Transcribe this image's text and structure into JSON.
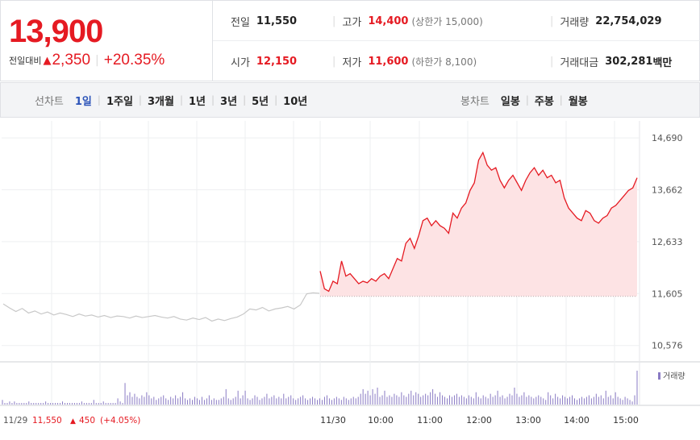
{
  "quote": {
    "current_price": "13,900",
    "change_label": "전일대비",
    "change_icon": "up-triangle-icon",
    "change_amount": "2,350",
    "change_percent": "+20.35%"
  },
  "stats": {
    "prev_close": {
      "label": "전일",
      "value": "11,550"
    },
    "open": {
      "label": "시가",
      "value": "12,150"
    },
    "high": {
      "label": "고가",
      "value": "14,400",
      "sub": "(상한가 15,000)"
    },
    "low": {
      "label": "저가",
      "value": "11,600",
      "sub": "(하한가 8,100)"
    },
    "volume": {
      "label": "거래량",
      "value": "22,754,029"
    },
    "amount": {
      "label": "거래대금",
      "value": "302,281",
      "unit": "백만"
    }
  },
  "tabs": {
    "line_label": "선차트",
    "line_tabs": [
      "1일",
      "1주일",
      "3개월",
      "1년",
      "3년",
      "5년",
      "10년"
    ],
    "line_active": "1일",
    "candle_label": "봉차트",
    "candle_tabs": [
      "일봉",
      "주봉",
      "월봉"
    ]
  },
  "colors": {
    "up": "#e51a22",
    "prev_day_line": "#c8c8c8",
    "fill": "#fde3e4",
    "volume": "#8a7bc4",
    "active_tab": "#2b53b8"
  },
  "chart_data": {
    "type": "line",
    "y_ticks": [
      "14,690",
      "13,662",
      "12,633",
      "11,605",
      "10,576"
    ],
    "y_tick_values": [
      14690,
      13662,
      12633,
      11605,
      10576
    ],
    "ylim": [
      10300,
      14900
    ],
    "baseline": 11550,
    "x_labels": [
      "11/29",
      "11/30",
      "10:00",
      "11:00",
      "12:00",
      "13:00",
      "14:00",
      "15:00"
    ],
    "prev_day_footer": {
      "date": "11/29",
      "price": "11,550",
      "change": "450",
      "pct": "(+4.05%)"
    },
    "volume_legend": "거래량",
    "series": [
      {
        "values_prev_day": [
          11400,
          11320,
          11250,
          11310,
          11220,
          11260,
          11200,
          11240,
          11180,
          11220,
          11190,
          11150,
          11200,
          11160,
          11180,
          11140,
          11170,
          11130,
          11160,
          11150,
          11120,
          11160,
          11130,
          11150,
          11170,
          11140,
          11120,
          11150,
          11100,
          11080,
          11120,
          11090,
          11130,
          11060,
          11100,
          11070,
          11110,
          11140,
          11200,
          11300,
          11280,
          11330,
          11260,
          11300,
          11320,
          11350,
          11300,
          11380,
          11600,
          11620,
          11610
        ],
        "values_today": [
          12050,
          11700,
          11650,
          11850,
          11800,
          12250,
          11950,
          12000,
          11900,
          11800,
          11850,
          11820,
          11900,
          11850,
          11950,
          12000,
          11900,
          12100,
          12300,
          12250,
          12600,
          12700,
          12500,
          12750,
          13050,
          13100,
          12950,
          13050,
          12950,
          12900,
          12800,
          13200,
          13100,
          13300,
          13400,
          13650,
          13800,
          14250,
          14400,
          14150,
          14050,
          14100,
          13850,
          13700,
          13850,
          13950,
          13800,
          13650,
          13850,
          14000,
          14100,
          13950,
          14050,
          13900,
          13950,
          13800,
          13850,
          13500,
          13300,
          13200,
          13100,
          13050,
          13250,
          13200,
          13050,
          13000,
          13100,
          13150,
          13300,
          13350,
          13450,
          13550,
          13650,
          13700,
          13900
        ]
      }
    ],
    "volume_values": [
      3,
      1,
      1,
      2,
      1,
      2,
      1,
      1,
      1,
      1,
      1,
      2,
      1,
      1,
      1,
      1,
      1,
      1,
      2,
      1,
      1,
      1,
      1,
      1,
      1,
      2,
      1,
      1,
      1,
      1,
      1,
      1,
      1,
      2,
      1,
      1,
      1,
      1,
      3,
      1,
      1,
      1,
      2,
      1,
      1,
      1,
      1,
      1,
      4,
      2,
      1,
      14,
      6,
      8,
      5,
      7,
      5,
      4,
      6,
      5,
      8,
      6,
      4,
      5,
      3,
      4,
      5,
      6,
      4,
      3,
      5,
      4,
      6,
      4,
      5,
      8,
      4,
      3,
      4,
      3,
      5,
      4,
      3,
      5,
      3,
      4,
      6,
      3,
      4,
      3,
      3,
      4,
      5,
      10,
      4,
      3,
      4,
      5,
      9,
      4,
      6,
      9,
      4,
      3,
      4,
      6,
      5,
      3,
      4,
      5,
      7,
      4,
      5,
      6,
      4,
      5,
      4,
      7,
      4,
      5,
      6,
      4,
      3,
      4,
      5,
      6,
      4,
      3,
      4,
      5,
      4,
      3,
      4,
      3,
      5,
      6,
      4,
      3,
      4,
      5,
      4,
      3,
      5,
      4,
      3,
      4,
      5,
      4,
      5,
      7,
      10,
      7,
      9,
      6,
      10,
      7,
      11,
      5,
      6,
      9,
      5,
      6,
      5,
      7,
      6,
      5,
      8,
      6,
      5,
      7,
      9,
      6,
      8,
      7,
      5,
      6,
      7,
      6,
      8,
      10,
      7,
      5,
      8,
      6,
      5,
      4,
      6,
      5,
      6,
      7,
      5,
      6,
      5,
      4,
      6,
      5,
      4,
      8,
      5,
      4,
      6,
      5,
      4,
      7,
      5,
      6,
      9,
      5,
      6,
      4,
      5,
      7,
      6,
      11,
      7,
      5,
      6,
      8,
      5,
      6,
      5,
      4,
      5,
      6,
      5,
      4,
      3,
      8,
      6,
      4,
      7,
      5,
      4,
      6,
      5,
      4,
      5,
      6,
      4,
      3,
      4,
      5,
      4,
      5,
      6,
      4,
      5,
      7,
      5,
      6,
      4,
      9,
      5,
      6,
      4,
      8,
      5,
      4,
      3,
      5,
      4,
      3,
      2,
      6,
      22
    ]
  }
}
